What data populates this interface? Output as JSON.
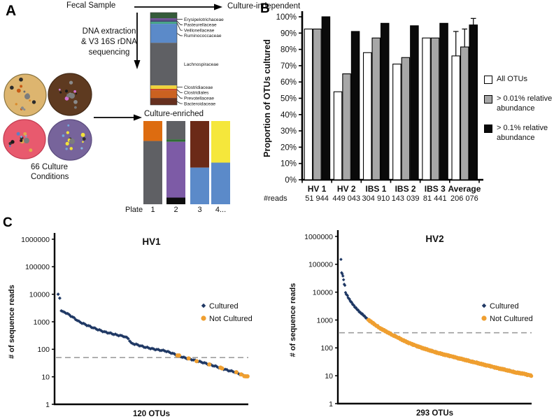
{
  "panelA": {
    "label": "A",
    "fecal_sample": "Fecal Sample",
    "dna_text_lines": [
      "DNA extraction",
      "& V3 16S rDNA",
      "sequencing"
    ],
    "culture_conditions_lines": [
      "66 Culture",
      "Conditions"
    ],
    "culture_independent": {
      "title": "Culture-independent",
      "segments": [
        {
          "name": "",
          "color": "#355C3A",
          "pct": 6.1,
          "callout": false
        },
        {
          "name": "Erysipelotrichaceae",
          "color": "#6F5295",
          "pct": 2.3,
          "callout": true
        },
        {
          "name": "Pasteurellaceae",
          "color": "#41416F",
          "pct": 1.5,
          "callout": true
        },
        {
          "name": "Veillonellaceae",
          "color": "#46A386",
          "pct": 2.3,
          "callout": true
        },
        {
          "name": "Ruminococcaceae",
          "color": "#5B8AC9",
          "pct": 20.5,
          "callout": false
        },
        {
          "name": "Lachnospiraceae",
          "color": "#5F6064",
          "pct": 46.2,
          "callout": false
        },
        {
          "name": "Clostridiaceae",
          "color": "#EFD23B",
          "pct": 3.8,
          "callout": true
        },
        {
          "name": "Clostridiales",
          "color": "#C9391B",
          "pct": 1.5,
          "callout": true
        },
        {
          "name": "Prevotellaceae",
          "color": "#CB6120",
          "pct": 8.3,
          "callout": false
        },
        {
          "name": "Bacteroidaceae",
          "color": "#66301F",
          "pct": 7.5,
          "callout": false
        }
      ]
    },
    "culture_enriched": {
      "title": "Culture-enriched",
      "plate_label": "Plate",
      "plates": [
        {
          "label": "1",
          "segments": [
            {
              "color": "#DD6C10",
              "pct": 24
            },
            {
              "color": "#5F6064",
              "pct": 76
            }
          ]
        },
        {
          "label": "2",
          "segments": [
            {
              "color": "#5F6064",
              "pct": 22
            },
            {
              "color": "#2E6B34",
              "pct": 3
            },
            {
              "color": "#7D5BA6",
              "pct": 67
            },
            {
              "color": "#0D0D0D",
              "pct": 8
            }
          ]
        },
        {
          "label": "3",
          "segments": [
            {
              "color": "#6B2A17",
              "pct": 56
            },
            {
              "color": "#5B8AC9",
              "pct": 44
            }
          ]
        },
        {
          "label": "4...",
          "segments": [
            {
              "color": "#F5E73B",
              "pct": 50
            },
            {
              "color": "#5B8AC9",
              "pct": 50
            }
          ]
        }
      ]
    },
    "dishes": [
      {
        "base": "#DDB56F",
        "border": "#8A7440",
        "dots": [
          "#C85A14",
          "#8A8A8A",
          "#2B2B2B",
          "#D98A2B",
          "#6B6B6B"
        ]
      },
      {
        "base": "#5E3A20",
        "border": "#432A17",
        "dots": [
          "#C77DD8",
          "#1A1A1A",
          "#8A8A8A",
          "#D06FCF",
          "#777777"
        ]
      },
      {
        "base": "#E85A6E",
        "border": "#C13A50",
        "dots": [
          "#1A1A1A",
          "#7FA3D8",
          "#E0A94C",
          "#333333",
          "#5D7FC4"
        ]
      },
      {
        "base": "#77649B",
        "border": "#5A4B7D",
        "dots": [
          "#F2E23A",
          "#6FA8DC",
          "#F2E23A",
          "#2F2F2F",
          "#85B4E0"
        ]
      }
    ]
  },
  "panelB": {
    "label": "B"
  },
  "panelC": {
    "label": "C"
  },
  "chart_data": [
    {
      "type": "bar",
      "title": "",
      "ylabel": "Proportion of OTUs cultured",
      "categories": [
        "HV 1",
        "HV 2",
        "IBS 1",
        "IBS 2",
        "IBS 3",
        "Average"
      ],
      "reads_row_label": "#reads",
      "reads": [
        "51 944",
        "449 043",
        "304 910",
        "143 039",
        "81 441",
        "206 076"
      ],
      "ylim": [
        0,
        100
      ],
      "ytick_labels": [
        "0%",
        "10%",
        "20%",
        "30%",
        "40%",
        "50%",
        "60%",
        "70%",
        "80%",
        "90%",
        "100%"
      ],
      "series": [
        {
          "name": "All OTUs",
          "color": "#FFFFFF",
          "values": [
            92.5,
            54,
            78,
            71,
            87,
            76
          ],
          "error_up": [
            null,
            null,
            null,
            null,
            null,
            15
          ]
        },
        {
          "name": "> 0.01% relative abundance",
          "color": "#A7A7A7",
          "values": [
            92.5,
            65,
            87,
            75,
            87,
            81.5
          ],
          "error_up": [
            null,
            null,
            null,
            null,
            null,
            11
          ]
        },
        {
          "name": "> 0.1% relative abundance",
          "color": "#0A0A0A",
          "values": [
            100,
            91,
            96,
            94.5,
            96,
            95
          ],
          "error_up": [
            null,
            null,
            null,
            null,
            null,
            4
          ]
        }
      ]
    },
    {
      "type": "scatter",
      "title": "HV1",
      "xlabel": "120 OTUs",
      "ylabel": "# of sequence reads",
      "yscale": "log",
      "ylim": [
        1,
        1000000
      ],
      "yticks": [
        1,
        10,
        100,
        1000,
        10000,
        100000,
        1000000
      ],
      "n_points": 120,
      "threshold_line": 50,
      "series_names": [
        "Cultured",
        "Not Cultured"
      ],
      "cultured_color": "#1F3864",
      "not_cultured_color": "#EF9F30",
      "anchors": [
        [
          1,
          10000
        ],
        [
          2,
          7200
        ],
        [
          3,
          2500
        ],
        [
          6,
          2100
        ],
        [
          10,
          1500
        ],
        [
          14,
          1020
        ],
        [
          18,
          800
        ],
        [
          22,
          640
        ],
        [
          26,
          520
        ],
        [
          30,
          430
        ],
        [
          34,
          380
        ],
        [
          38,
          330
        ],
        [
          42,
          300
        ],
        [
          45,
          250
        ],
        [
          47,
          165
        ],
        [
          50,
          150
        ],
        [
          55,
          122
        ],
        [
          60,
          105
        ],
        [
          64,
          95
        ],
        [
          68,
          88
        ],
        [
          72,
          74
        ],
        [
          76,
          60
        ],
        [
          80,
          50
        ],
        [
          84,
          44
        ],
        [
          88,
          38
        ],
        [
          92,
          33
        ],
        [
          96,
          28
        ],
        [
          100,
          24
        ],
        [
          104,
          20
        ],
        [
          108,
          17
        ],
        [
          112,
          15
        ],
        [
          116,
          12
        ],
        [
          120,
          10
        ]
      ],
      "not_cultured_ranks": [
        76,
        77,
        83,
        88,
        96,
        103,
        104,
        113,
        116,
        118,
        119,
        120
      ]
    },
    {
      "type": "scatter",
      "title": "HV2",
      "xlabel": "293 OTUs",
      "ylabel": "# of sequence reads",
      "yscale": "log",
      "ylim": [
        1,
        1000000
      ],
      "yticks": [
        1,
        10,
        100,
        1000,
        10000,
        100000,
        1000000
      ],
      "n_points": 293,
      "threshold_line": 350,
      "series_names": [
        "Cultured",
        "Not Cultured"
      ],
      "cultured_color": "#1F3864",
      "not_cultured_color": "#EF9F30",
      "anchors": [
        [
          1,
          150000
        ],
        [
          2,
          50000
        ],
        [
          3,
          45000
        ],
        [
          4,
          38000
        ],
        [
          5,
          28000
        ],
        [
          6,
          20000
        ],
        [
          7,
          17000
        ],
        [
          8,
          9500
        ],
        [
          10,
          8000
        ],
        [
          12,
          6500
        ],
        [
          15,
          5000
        ],
        [
          18,
          4000
        ],
        [
          22,
          3000
        ],
        [
          26,
          2400
        ],
        [
          30,
          1900
        ],
        [
          34,
          1600
        ],
        [
          38,
          1300
        ],
        [
          42,
          1050
        ],
        [
          46,
          900
        ],
        [
          50,
          780
        ],
        [
          55,
          640
        ],
        [
          60,
          530
        ],
        [
          65,
          450
        ],
        [
          70,
          390
        ],
        [
          75,
          340
        ],
        [
          80,
          290
        ],
        [
          85,
          260
        ],
        [
          90,
          225
        ],
        [
          95,
          195
        ],
        [
          100,
          170
        ],
        [
          110,
          135
        ],
        [
          120,
          110
        ],
        [
          130,
          92
        ],
        [
          140,
          78
        ],
        [
          150,
          66
        ],
        [
          160,
          57
        ],
        [
          170,
          50
        ],
        [
          180,
          43
        ],
        [
          190,
          38
        ],
        [
          200,
          33
        ],
        [
          210,
          29
        ],
        [
          220,
          25
        ],
        [
          230,
          22
        ],
        [
          240,
          19
        ],
        [
          250,
          17
        ],
        [
          260,
          15
        ],
        [
          270,
          13
        ],
        [
          280,
          12
        ],
        [
          293,
          10
        ]
      ],
      "cultured_ranks": [
        1,
        2,
        3,
        4,
        5,
        6,
        7,
        8,
        9,
        10,
        11,
        12,
        13,
        14,
        15,
        16,
        17,
        18,
        19,
        20,
        21,
        22,
        23,
        24,
        25,
        26,
        27,
        28,
        29,
        30,
        31,
        32,
        33,
        34,
        35,
        36,
        37,
        38,
        39,
        40,
        41,
        42,
        48,
        54,
        60,
        66,
        73,
        80,
        87,
        94,
        101,
        108,
        115,
        122,
        129,
        136,
        143,
        150,
        157,
        164,
        171,
        178,
        185,
        192,
        199,
        206,
        213,
        220,
        227,
        234,
        241,
        248,
        255,
        262,
        269,
        276,
        283,
        290
      ]
    }
  ]
}
